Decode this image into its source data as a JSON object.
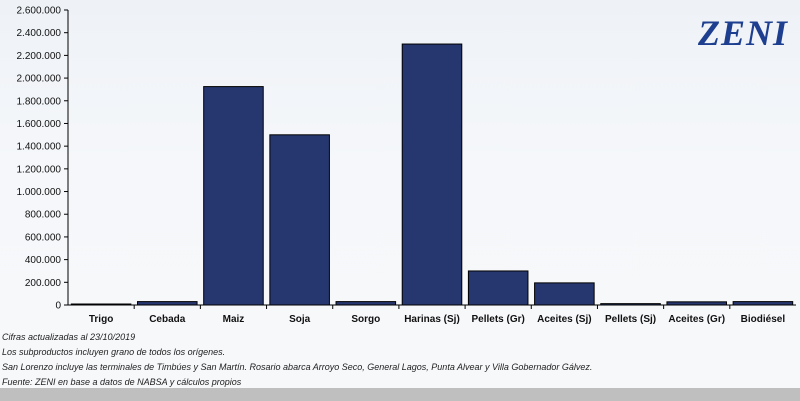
{
  "logo": "ZENI",
  "notes": [
    "Cifras actualizadas al 23/10/2019",
    "Los subproductos incluyen grano de todos los orígenes.",
    "San Lorenzo incluye las terminales de Timbúes y San Martín. Rosario abarca Arroyo Seco, General Lagos, Punta Alvear y Villa Gobernador Gálvez.",
    "Fuente: ZENI en base a datos de NABSA y cálculos propios"
  ],
  "colors": {
    "bar": "#26366e",
    "bar_stroke": "#000000",
    "logo": "#1e3f8f"
  },
  "chart_data": {
    "type": "bar",
    "title": "",
    "xlabel": "",
    "ylabel": "",
    "categories": [
      "Trigo",
      "Cebada",
      "Maiz",
      "Soja",
      "Sorgo",
      "Harinas (Sj)",
      "Pellets (Gr)",
      "Aceites (Sj)",
      "Pellets (Sj)",
      "Aceites (Gr)",
      "Biodiésel"
    ],
    "values": [
      2000,
      30000,
      1925000,
      1500000,
      30000,
      2300000,
      300000,
      195000,
      12000,
      28000,
      30000
    ],
    "ylim": [
      0,
      2600000
    ],
    "yticks": [
      0,
      200000,
      400000,
      600000,
      800000,
      1000000,
      1200000,
      1400000,
      1600000,
      1800000,
      2000000,
      2200000,
      2400000,
      2600000
    ],
    "ytick_labels": [
      "0",
      "200.000",
      "400.000",
      "600.000",
      "800.000",
      "1.000.000",
      "1.200.000",
      "1.400.000",
      "1.600.000",
      "1.800.000",
      "2.000.000",
      "2.200.000",
      "2.400.000",
      "2.600.000"
    ],
    "grid": false,
    "legend": "none"
  }
}
